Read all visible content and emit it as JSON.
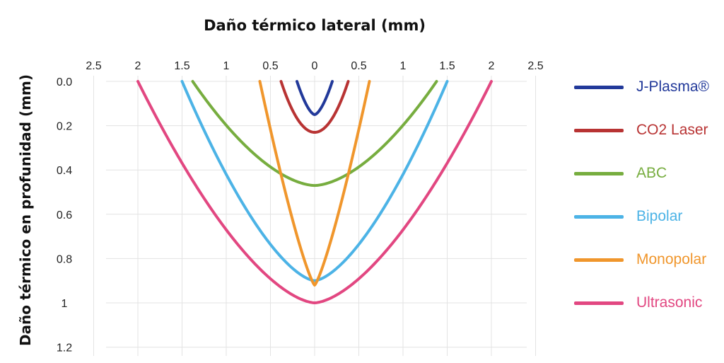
{
  "chart_data": {
    "type": "line",
    "title": "",
    "xlabel": "Daño térmico lateral (mm)",
    "ylabel": "Daño térmico en profunidad (mm)",
    "x_tick_labels": [
      "2.5",
      "2",
      "1.5",
      "1",
      "0.5",
      "0",
      "0.5",
      "1",
      "1.5",
      "2",
      "2.5"
    ],
    "x_tick_values": [
      -2.5,
      -2,
      -1.5,
      -1,
      -0.5,
      0,
      0.5,
      1,
      1.5,
      2,
      2.5
    ],
    "y_tick_labels": [
      "0.0",
      "0.2",
      "0.4",
      "0.6",
      "0.8",
      "1",
      "1.2"
    ],
    "y_tick_values": [
      0,
      0.2,
      0.4,
      0.6,
      0.8,
      1.0,
      1.2
    ],
    "xlim": [
      -2.5,
      2.5
    ],
    "ylim": [
      0,
      1.2
    ],
    "y_inverted": true,
    "grid": true,
    "legend_position": "right",
    "series": [
      {
        "name": "J-Plasma®",
        "color": "#22399a",
        "half_width": 0.2,
        "depth": 0.15,
        "exponent": 1.6
      },
      {
        "name": "CO2 Laser",
        "color": "#b83333",
        "half_width": 0.38,
        "depth": 0.23,
        "exponent": 2.0
      },
      {
        "name": "ABC",
        "color": "#77ad3f",
        "half_width": 1.38,
        "depth": 0.47,
        "exponent": 1.7
      },
      {
        "name": "Bipolar",
        "color": "#4cb3e6",
        "half_width": 1.5,
        "depth": 0.9,
        "exponent": 1.55
      },
      {
        "name": "Monopolar",
        "color": "#f0962c",
        "half_width": 0.62,
        "depth": 0.92,
        "exponent": 1.25
      },
      {
        "name": "Ultrasonic",
        "color": "#e24781",
        "half_width": 2.0,
        "depth": 1.0,
        "exponent": 1.6
      }
    ]
  }
}
